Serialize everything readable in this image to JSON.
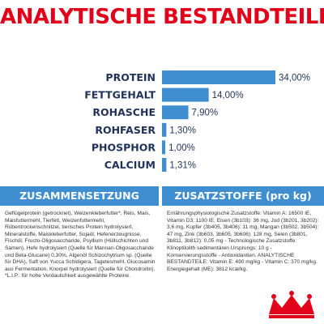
{
  "title": "ANALYTISCHE BESTANDTEILE",
  "colors": {
    "title": "#e2001a",
    "bar": "#3f8fd0",
    "label": "#1f3258",
    "panel": "#3f8fd0"
  },
  "chart_data": {
    "type": "bar",
    "orientation": "horizontal",
    "categories": [
      "PROTEIN",
      "FETTGEHALT",
      "ROHASCHE",
      "ROHFASER",
      "PHOSPHOR",
      "CALCIUM"
    ],
    "values": [
      34.0,
      14.0,
      7.9,
      1.3,
      1.0,
      1.31
    ],
    "value_labels": [
      "34,00%",
      "14,00%",
      "7,90%",
      "1,30%",
      "1,00%",
      "1,31%"
    ],
    "xlim": [
      0,
      34
    ],
    "grid": false,
    "legend": "none"
  },
  "panels": {
    "left": {
      "heading": "ZUSAMMENSETZUNG",
      "text": "Geflügelprotein (getrocknet), Weizenkleberfutter*, Reis, Mais, Maisfuttermehl, Tierfett, Weizenfuttermehl, Rübentrockenschnitzel, tierisches Protein hydrolysiert, Mineralstoffe, Maiskleberfutter, Sojaöl, Hefenerzeugnisse, Fischöl, Fructo-Oligosaccharide, Psyllium (Hüllschichten und Samen), Hefe hydrolysiert (Quelle für Mannan-Oligosaccharide und Beta-Glucane) 0,30%, Algenöl Schizochytrium sp. (Quelle für DHA), Saft von Yucca Schidigera, Tagetesmehl, Glucosamin aus Fermentation, Knorpel hydrolysiert (Quelle für Chondroitin). *L.I.P.: für hohe Verdaulichkeit ausgewählte Proteine."
    },
    "right": {
      "heading": "ZUSATZSTOFFE (pro kg)",
      "text": "Ernährungsphysiologische Zusatzstoffe: Vitamin A: 16500 IE, Vitamin D3: 1100 IE, Eisen (3b103): 36 mg, Jod (3b201, 3b202): 3,6 mg, Kupfer (3b405, 3b406): 11 mg, Mangan (3b502, 3b504): 47 mg, Zink (3b603, 3b605, 3b606): 128 mg, Selen (3b801, 3b811, 3b812): 0,05 mg - Technologische Zusatzstoffe: Klinoptilolith sedimentären Ursprungs: 10 g - Konservierungsstoffe - Antioxidantien. ANALYTISCHE BESTANDTEILE: Vitamin E: 490 mg/kg - Vitamin C: 370 mg/kg. Energiegehalt (ME): 3812 kcal/kg."
    }
  },
  "logo_icon": "royal-canin-crown-icon"
}
